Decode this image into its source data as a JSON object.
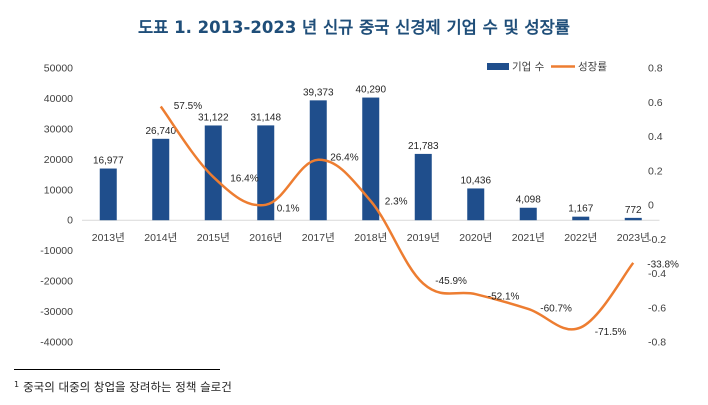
{
  "chart_data": {
    "type": "bar+line",
    "title": "도표 1. 2013-2023 년 신규 중국 신경제 기업 수 및 성장률",
    "categories": [
      "2013년",
      "2014년",
      "2015년",
      "2016년",
      "2017년",
      "2018년",
      "2019년",
      "2020년",
      "2021년",
      "2022년",
      "2023년"
    ],
    "series": [
      {
        "name": "기업 수",
        "type": "bar",
        "axis": "left",
        "color": "#1f4e8c",
        "values": [
          16977,
          26740,
          31122,
          31148,
          39373,
          40290,
          21783,
          10436,
          4098,
          1167,
          772
        ],
        "labels": [
          "16,977",
          "26,740",
          "31,122",
          "31,148",
          "39,373",
          "40,290",
          "21,783",
          "10,436",
          "4,098",
          "1,167",
          "772"
        ]
      },
      {
        "name": "성장률",
        "type": "line",
        "axis": "right",
        "color": "#ed7d31",
        "smooth": true,
        "values": [
          null,
          0.575,
          0.164,
          0.001,
          0.264,
          0.023,
          -0.459,
          -0.521,
          -0.607,
          -0.715,
          -0.338
        ],
        "labels": [
          "",
          "57.5%",
          "16.4%",
          "0.1%",
          "26.4%",
          "2.3%",
          "-45.9%",
          "-52.1%",
          "-60.7%",
          "-71.5%",
          "-33.8%"
        ]
      }
    ],
    "y_left": {
      "min": -40000,
      "max": 50000,
      "step": 10000,
      "ticks": [
        "50000",
        "40000",
        "30000",
        "20000",
        "10000",
        "0",
        "-10000",
        "-20000",
        "-30000",
        "-40000"
      ]
    },
    "y_right": {
      "min": -0.8,
      "max": 0.8,
      "step": 0.2,
      "ticks": [
        "0.8",
        "0.6",
        "0.4",
        "0.2",
        "0",
        "-0.2",
        "-0.4",
        "-0.6",
        "-0.8"
      ]
    },
    "legend_position": "top-right",
    "grid": false
  },
  "footnote": {
    "marker": "1",
    "text": "중국의 대중의 창업을 장려하는 정책 슬로건"
  }
}
